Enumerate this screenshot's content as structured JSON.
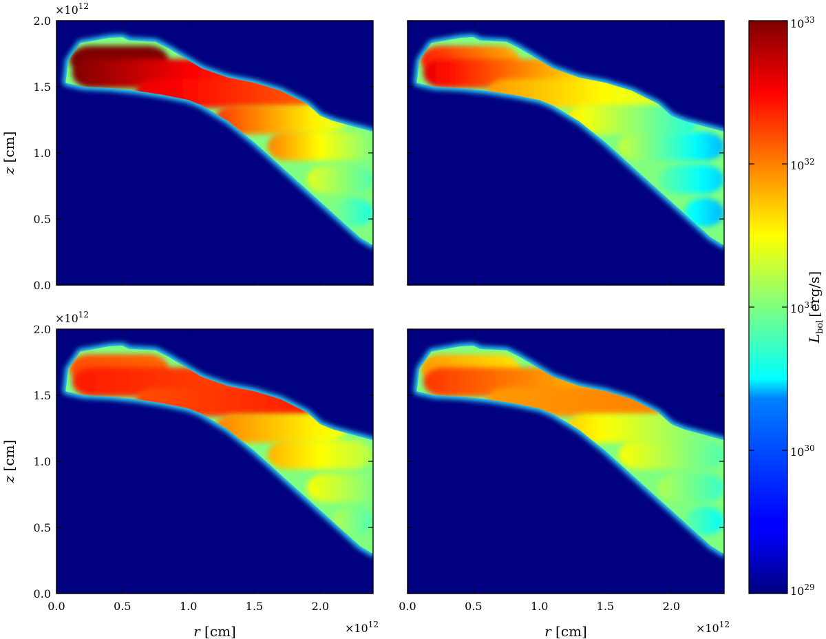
{
  "chart_data": {
    "type": "heatmap",
    "layout": "2x2 panels sharing axes",
    "colormap": "jet",
    "color_scale": "log",
    "background_value": 1e+29,
    "xlabel": "r [cm]",
    "ylabel": "z [cm]",
    "x_multiplier": "×10^12",
    "y_multiplier": "×10^12",
    "xlim": [
      0.0,
      2.4
    ],
    "ylim": [
      0.0,
      2.0
    ],
    "x_ticks": [
      0.0,
      0.5,
      1.0,
      1.5,
      2.0
    ],
    "x_tick_labels": [
      "0.0",
      "0.5",
      "1.0",
      "1.5",
      "2.0"
    ],
    "y_ticks": [
      0.0,
      0.5,
      1.0,
      1.5,
      2.0
    ],
    "y_tick_labels": [
      "0.0",
      "0.5",
      "1.0",
      "1.5",
      "2.0"
    ],
    "colorbar": {
      "label": "L_bol [erg/s]",
      "label_main": "L",
      "label_sub": "bol",
      "label_units": "[erg/s]",
      "range": [
        1e+29,
        1e+33
      ],
      "tick_exponents": [
        29,
        30,
        31,
        32,
        33
      ],
      "tick_labels": [
        "10^29",
        "10^30",
        "10^31",
        "10^32",
        "10^33"
      ]
    },
    "outline": {
      "upper_edge": [
        [
          0.07,
          1.53
        ],
        [
          0.09,
          1.7
        ],
        [
          0.18,
          1.83
        ],
        [
          0.4,
          1.87
        ],
        [
          0.5,
          1.875
        ],
        [
          0.55,
          1.85
        ],
        [
          0.75,
          1.84
        ],
        [
          0.85,
          1.79
        ],
        [
          0.95,
          1.73
        ],
        [
          1.1,
          1.64
        ],
        [
          1.3,
          1.57
        ],
        [
          1.5,
          1.53
        ],
        [
          1.7,
          1.47
        ],
        [
          1.9,
          1.37
        ],
        [
          2.0,
          1.28
        ],
        [
          2.1,
          1.24
        ],
        [
          2.4,
          1.16
        ]
      ],
      "lower_edge": [
        [
          2.4,
          0.3
        ],
        [
          2.3,
          0.36
        ],
        [
          2.2,
          0.45
        ],
        [
          2.1,
          0.54
        ],
        [
          2.0,
          0.63
        ],
        [
          1.9,
          0.72
        ],
        [
          1.8,
          0.81
        ],
        [
          1.7,
          0.9
        ],
        [
          1.6,
          0.99
        ],
        [
          1.5,
          1.08
        ],
        [
          1.4,
          1.16
        ],
        [
          1.3,
          1.24
        ],
        [
          1.2,
          1.3
        ],
        [
          1.1,
          1.36
        ],
        [
          1.0,
          1.4
        ],
        [
          0.8,
          1.44
        ],
        [
          0.6,
          1.47
        ],
        [
          0.4,
          1.49
        ],
        [
          0.2,
          1.5
        ],
        [
          0.07,
          1.53
        ]
      ]
    },
    "panels": [
      {
        "position": "top-left",
        "shows_x_tick_labels": false,
        "shows_y_tick_labels": true,
        "bands_log10_L": [
          {
            "z_center": 1.7,
            "r_start": 0.1,
            "r_end": 0.85,
            "log10_L_start": 33.0,
            "log10_L_end": 33.0
          },
          {
            "z_center": 1.6,
            "r_start": 0.12,
            "r_end": 1.6,
            "log10_L_start": 33.0,
            "log10_L_end": 32.2
          },
          {
            "z_center": 1.45,
            "r_start": 0.6,
            "r_end": 2.0,
            "log10_L_start": 32.6,
            "log10_L_end": 32.1
          },
          {
            "z_center": 1.25,
            "r_start": 1.2,
            "r_end": 2.2,
            "log10_L_start": 32.3,
            "log10_L_end": 31.3
          },
          {
            "z_center": 1.05,
            "r_start": 1.6,
            "r_end": 2.4,
            "log10_L_start": 32.0,
            "log10_L_end": 31.0
          },
          {
            "z_center": 0.8,
            "r_start": 1.9,
            "r_end": 2.4,
            "log10_L_start": 31.4,
            "log10_L_end": 30.8
          },
          {
            "z_center": 0.55,
            "r_start": 2.1,
            "r_end": 2.4,
            "log10_L_start": 31.0,
            "log10_L_end": 30.6
          }
        ]
      },
      {
        "position": "top-right",
        "shows_x_tick_labels": false,
        "shows_y_tick_labels": false,
        "bands_log10_L": [
          {
            "z_center": 1.7,
            "r_start": 0.1,
            "r_end": 0.85,
            "log10_L_start": 32.4,
            "log10_L_end": 31.8
          },
          {
            "z_center": 1.6,
            "r_start": 0.12,
            "r_end": 1.6,
            "log10_L_start": 32.6,
            "log10_L_end": 31.4
          },
          {
            "z_center": 1.45,
            "r_start": 0.6,
            "r_end": 2.0,
            "log10_L_start": 31.9,
            "log10_L_end": 31.3
          },
          {
            "z_center": 1.25,
            "r_start": 1.2,
            "r_end": 2.2,
            "log10_L_start": 31.6,
            "log10_L_end": 30.6
          },
          {
            "z_center": 1.05,
            "r_start": 1.6,
            "r_end": 2.4,
            "log10_L_start": 31.3,
            "log10_L_end": 30.2
          },
          {
            "z_center": 0.8,
            "r_start": 1.9,
            "r_end": 2.4,
            "log10_L_start": 30.9,
            "log10_L_end": 30.3
          },
          {
            "z_center": 0.55,
            "r_start": 2.1,
            "r_end": 2.4,
            "log10_L_start": 30.6,
            "log10_L_end": 30.2
          }
        ]
      },
      {
        "position": "bottom-left",
        "shows_x_tick_labels": true,
        "shows_y_tick_labels": true,
        "bands_log10_L": [
          {
            "z_center": 1.7,
            "r_start": 0.1,
            "r_end": 0.85,
            "log10_L_start": 32.2,
            "log10_L_end": 32.1
          },
          {
            "z_center": 1.6,
            "r_start": 0.12,
            "r_end": 1.6,
            "log10_L_start": 32.4,
            "log10_L_end": 32.2
          },
          {
            "z_center": 1.45,
            "r_start": 0.6,
            "r_end": 2.0,
            "log10_L_start": 32.2,
            "log10_L_end": 32.4
          },
          {
            "z_center": 1.25,
            "r_start": 1.2,
            "r_end": 2.2,
            "log10_L_start": 32.0,
            "log10_L_end": 31.4
          },
          {
            "z_center": 1.05,
            "r_start": 1.6,
            "r_end": 2.4,
            "log10_L_start": 31.8,
            "log10_L_end": 31.2
          },
          {
            "z_center": 0.8,
            "r_start": 1.9,
            "r_end": 2.4,
            "log10_L_start": 31.5,
            "log10_L_end": 31.0
          },
          {
            "z_center": 0.55,
            "r_start": 2.1,
            "r_end": 2.4,
            "log10_L_start": 31.2,
            "log10_L_end": 30.8
          }
        ]
      },
      {
        "position": "bottom-right",
        "shows_x_tick_labels": true,
        "shows_y_tick_labels": false,
        "bands_log10_L": [
          {
            "z_center": 1.7,
            "r_start": 0.1,
            "r_end": 0.85,
            "log10_L_start": 31.9,
            "log10_L_end": 31.6
          },
          {
            "z_center": 1.6,
            "r_start": 0.12,
            "r_end": 1.6,
            "log10_L_start": 32.3,
            "log10_L_end": 31.7
          },
          {
            "z_center": 1.45,
            "r_start": 0.6,
            "r_end": 2.0,
            "log10_L_start": 31.9,
            "log10_L_end": 32.0
          },
          {
            "z_center": 1.25,
            "r_start": 1.2,
            "r_end": 2.2,
            "log10_L_start": 31.7,
            "log10_L_end": 31.0
          },
          {
            "z_center": 1.05,
            "r_start": 1.6,
            "r_end": 2.4,
            "log10_L_start": 31.5,
            "log10_L_end": 30.8
          },
          {
            "z_center": 0.8,
            "r_start": 1.9,
            "r_end": 2.4,
            "log10_L_start": 31.2,
            "log10_L_end": 30.7
          },
          {
            "z_center": 0.55,
            "r_start": 2.1,
            "r_end": 2.4,
            "log10_L_start": 30.9,
            "log10_L_end": 30.5
          }
        ]
      }
    ]
  }
}
